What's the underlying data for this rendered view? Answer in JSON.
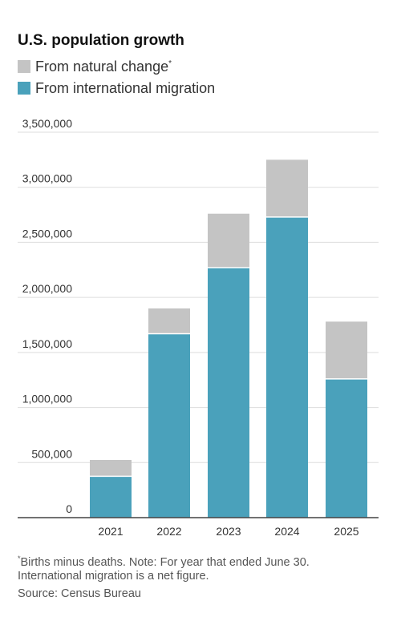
{
  "chart_data": {
    "type": "bar",
    "stacked": true,
    "title": "U.S. population growth",
    "categories": [
      "2021",
      "2022",
      "2023",
      "2024",
      "2025"
    ],
    "series": [
      {
        "name": "From international migration",
        "color": "#4aa1bb",
        "values": [
          376000,
          1670000,
          2270000,
          2730000,
          1260000
        ]
      },
      {
        "name": "From natural change",
        "name_marker": "*",
        "color": "#c4c4c4",
        "values": [
          148000,
          230000,
          490000,
          520000,
          520000
        ]
      }
    ],
    "ylim": [
      0,
      3500000
    ],
    "yticks": [
      0,
      500000,
      1000000,
      1500000,
      2000000,
      2500000,
      3000000,
      3500000
    ],
    "ytick_labels": [
      "0",
      "500,000",
      "1,000,000",
      "1,500,000",
      "2,000,000",
      "2,500,000",
      "3,000,000",
      "3,500,000"
    ],
    "xlabel": "",
    "ylabel": "",
    "grid": true,
    "legend_position": "top-left"
  },
  "footnotes": {
    "line1_marker": "*",
    "line1_text": "Births minus deaths. Note: For year that ended June 30.",
    "line2_text": "International migration is a net figure.",
    "line3_text": "Source: Census Bureau"
  },
  "colors": {
    "grid": "#dddddd",
    "baseline": "#444444",
    "bar_divider": "#ffffff"
  }
}
